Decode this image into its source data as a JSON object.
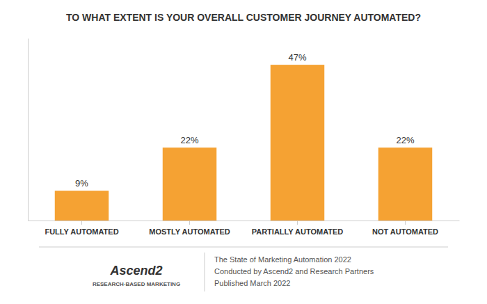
{
  "chart_data": {
    "type": "bar",
    "title": "TO WHAT EXTENT IS YOUR OVERALL CUSTOMER JOURNEY AUTOMATED?",
    "categories": [
      "FULLY AUTOMATED",
      "MOSTLY AUTOMATED",
      "PARTIALLY AUTOMATED",
      "NOT AUTOMATED"
    ],
    "values": [
      9,
      22,
      47,
      22
    ],
    "value_labels": [
      "9%",
      "22%",
      "47%",
      "22%"
    ],
    "data_labels": true,
    "color": "#F5A233",
    "ylim": [
      0,
      55
    ],
    "tick_labels": "x",
    "annotations": [
      "Ascend2",
      "RESEARCH-BASED MARKETING",
      "The State of Marketing Automation 2022",
      "Conducted by Ascend2 and Research Partners",
      "Published March 2022"
    ]
  }
}
